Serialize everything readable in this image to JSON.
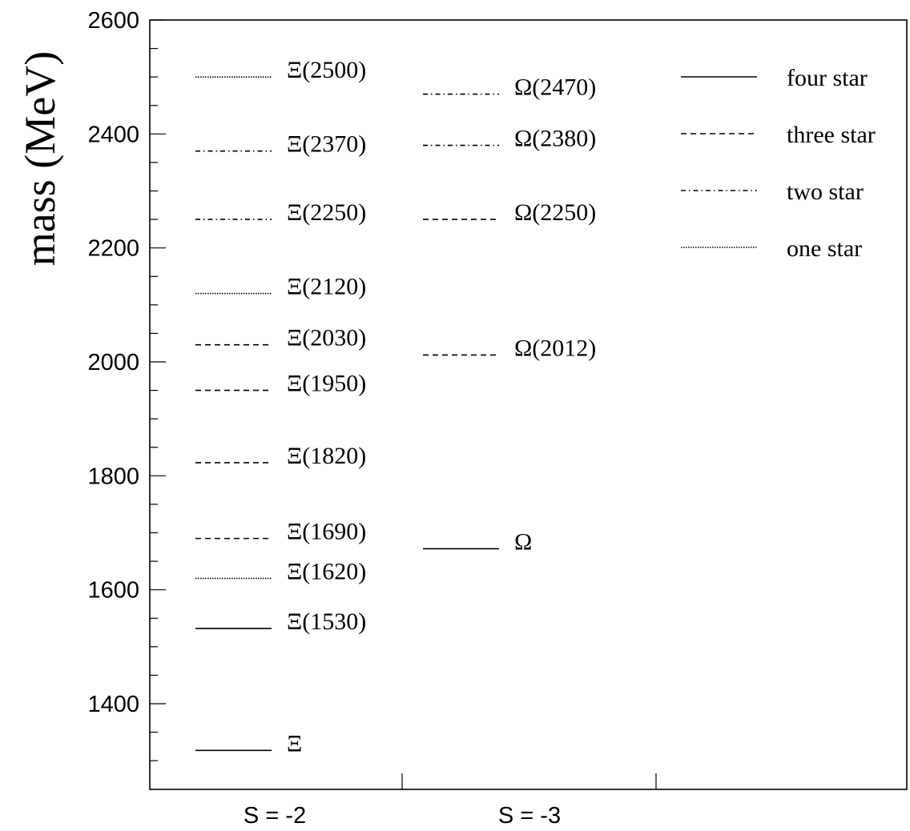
{
  "chart_data": {
    "type": "level diagram",
    "ylabel": "mass (MeV)",
    "ylim": [
      1280,
      2600
    ],
    "y_ticks": [
      1400,
      1600,
      1800,
      2000,
      2200,
      2400,
      2600
    ],
    "y_minor_step": 50,
    "categories": [
      "S = -2",
      "S = -3"
    ],
    "styles": [
      "four star",
      "three star",
      "two star",
      "one star"
    ],
    "legend_position": "top-right",
    "levels": [
      {
        "category": "S = -2",
        "label": "Ξ",
        "mass": 1318,
        "style": "four star"
      },
      {
        "category": "S = -2",
        "label": "Ξ(1530)",
        "mass": 1532,
        "style": "four star"
      },
      {
        "category": "S = -2",
        "label": "Ξ(1620)",
        "mass": 1620,
        "style": "one star"
      },
      {
        "category": "S = -2",
        "label": "Ξ(1690)",
        "mass": 1690,
        "style": "three star"
      },
      {
        "category": "S = -2",
        "label": "Ξ(1820)",
        "mass": 1823,
        "style": "three star"
      },
      {
        "category": "S = -2",
        "label": "Ξ(1950)",
        "mass": 1950,
        "style": "three star"
      },
      {
        "category": "S = -2",
        "label": "Ξ(2030)",
        "mass": 2030,
        "style": "three star"
      },
      {
        "category": "S = -2",
        "label": "Ξ(2120)",
        "mass": 2120,
        "style": "one star"
      },
      {
        "category": "S = -2",
        "label": "Ξ(2250)",
        "mass": 2250,
        "style": "two star"
      },
      {
        "category": "S = -2",
        "label": "Ξ(2370)",
        "mass": 2370,
        "style": "two star"
      },
      {
        "category": "S = -2",
        "label": "Ξ(2500)",
        "mass": 2500,
        "style": "one star"
      },
      {
        "category": "S = -3",
        "label": "Ω",
        "mass": 1672,
        "style": "four star"
      },
      {
        "category": "S = -3",
        "label": "Ω(2012)",
        "mass": 2012,
        "style": "three star"
      },
      {
        "category": "S = -3",
        "label": "Ω(2250)",
        "mass": 2250,
        "style": "three star"
      },
      {
        "category": "S = -3",
        "label": "Ω(2380)",
        "mass": 2380,
        "style": "two star"
      },
      {
        "category": "S = -3",
        "label": "Ω(2470)",
        "mass": 2470,
        "style": "two star"
      }
    ]
  }
}
